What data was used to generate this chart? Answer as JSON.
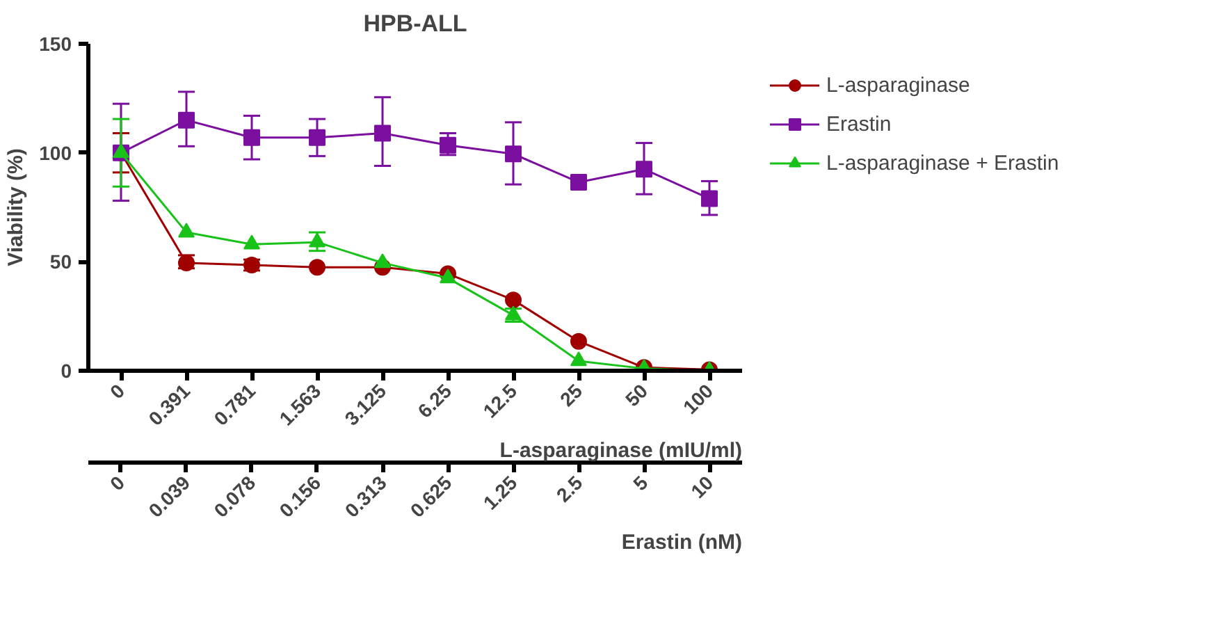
{
  "chart_data": {
    "type": "line",
    "title": "HPB-ALL",
    "xlabel": "L-asparaginase (mIU/ml)",
    "ylabel": "Viability (%)",
    "x2label": "Erastin (nM)",
    "categories": [
      "0",
      "0.391",
      "0.781",
      "1.563",
      "3.125",
      "6.25",
      "12.5",
      "25",
      "50",
      "100"
    ],
    "x2lim": [
      0.0138,
      14.12
    ],
    "log": "x2",
    "x2ticks": [
      {
        "value": 0.0195,
        "label": "0"
      },
      0.039,
      0.078,
      0.156,
      0.313,
      0.625,
      1.25,
      2.5,
      5,
      10
    ],
    "ylim": [
      0,
      150
    ],
    "yticks": [
      0,
      50,
      100,
      150
    ],
    "grid": false,
    "legend": "top right",
    "series": [
      {
        "name": "L-asparaginase",
        "color": "#a00000",
        "marker": "circle",
        "values": [
          100,
          49.5,
          48.5,
          47.5,
          47.5,
          44.5,
          32.5,
          13.5,
          1.5,
          0.5
        ],
        "errors": [
          [
            91,
            109
          ],
          [
            47,
            53
          ],
          [
            46,
            51
          ],
          null,
          null,
          null,
          null,
          null,
          null,
          null
        ]
      },
      {
        "name": "Erastin",
        "color": "#7b0fa0",
        "marker": "square",
        "values": [
          100,
          115,
          107,
          107,
          109,
          103.5,
          99.5,
          86.5,
          92.5,
          79
        ],
        "errors": [
          [
            78,
            122.5
          ],
          [
            103,
            128
          ],
          [
            97,
            117
          ],
          [
            98.5,
            115.5
          ],
          [
            94,
            125.5
          ],
          [
            99,
            109
          ],
          [
            85.5,
            114
          ],
          [
            84.5,
            89
          ],
          [
            81,
            104.5
          ],
          [
            71.5,
            87
          ]
        ]
      },
      {
        "name": "L-asparaginase + Erastin",
        "color": "#19c219",
        "marker": "triangle",
        "values": [
          100,
          63.5,
          58,
          59,
          49.5,
          42.5,
          25.5,
          4.5,
          1,
          0
        ],
        "errors": [
          [
            84.5,
            115.5
          ],
          null,
          null,
          [
            55,
            63.5
          ],
          null,
          null,
          [
            22.5,
            28.5
          ],
          null,
          null,
          null
        ]
      }
    ]
  }
}
